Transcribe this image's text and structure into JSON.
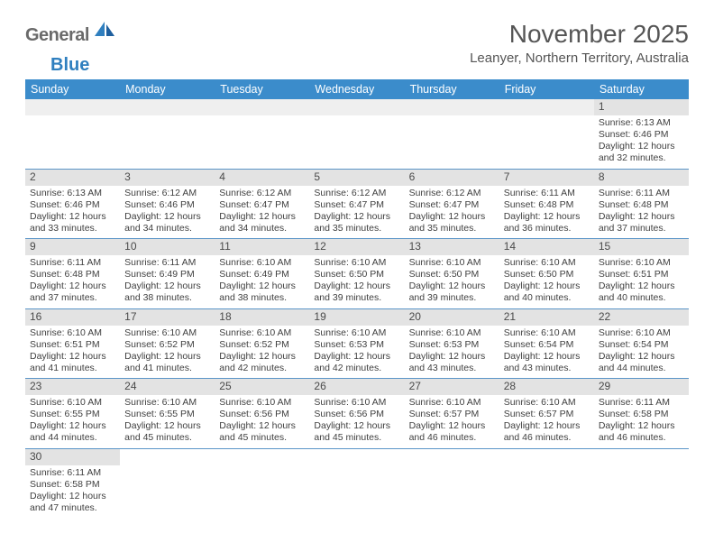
{
  "brand": {
    "part1": "General",
    "part2": "Blue"
  },
  "title": "November 2025",
  "location": "Leanyer, Northern Territory, Australia",
  "colors": {
    "header_bg": "#3b8ccb",
    "header_text": "#ffffff",
    "daynum_bg": "#e3e3e3",
    "row_border": "#5b95c8",
    "logo_gray": "#6a6a6a",
    "logo_blue": "#2f7fbf"
  },
  "weekdays": [
    "Sunday",
    "Monday",
    "Tuesday",
    "Wednesday",
    "Thursday",
    "Friday",
    "Saturday"
  ],
  "weeks": [
    [
      {
        "n": "",
        "sr": "",
        "ss": "",
        "dl": ""
      },
      {
        "n": "",
        "sr": "",
        "ss": "",
        "dl": ""
      },
      {
        "n": "",
        "sr": "",
        "ss": "",
        "dl": ""
      },
      {
        "n": "",
        "sr": "",
        "ss": "",
        "dl": ""
      },
      {
        "n": "",
        "sr": "",
        "ss": "",
        "dl": ""
      },
      {
        "n": "",
        "sr": "",
        "ss": "",
        "dl": ""
      },
      {
        "n": "1",
        "sr": "Sunrise: 6:13 AM",
        "ss": "Sunset: 6:46 PM",
        "dl": "Daylight: 12 hours and 32 minutes."
      }
    ],
    [
      {
        "n": "2",
        "sr": "Sunrise: 6:13 AM",
        "ss": "Sunset: 6:46 PM",
        "dl": "Daylight: 12 hours and 33 minutes."
      },
      {
        "n": "3",
        "sr": "Sunrise: 6:12 AM",
        "ss": "Sunset: 6:46 PM",
        "dl": "Daylight: 12 hours and 34 minutes."
      },
      {
        "n": "4",
        "sr": "Sunrise: 6:12 AM",
        "ss": "Sunset: 6:47 PM",
        "dl": "Daylight: 12 hours and 34 minutes."
      },
      {
        "n": "5",
        "sr": "Sunrise: 6:12 AM",
        "ss": "Sunset: 6:47 PM",
        "dl": "Daylight: 12 hours and 35 minutes."
      },
      {
        "n": "6",
        "sr": "Sunrise: 6:12 AM",
        "ss": "Sunset: 6:47 PM",
        "dl": "Daylight: 12 hours and 35 minutes."
      },
      {
        "n": "7",
        "sr": "Sunrise: 6:11 AM",
        "ss": "Sunset: 6:48 PM",
        "dl": "Daylight: 12 hours and 36 minutes."
      },
      {
        "n": "8",
        "sr": "Sunrise: 6:11 AM",
        "ss": "Sunset: 6:48 PM",
        "dl": "Daylight: 12 hours and 37 minutes."
      }
    ],
    [
      {
        "n": "9",
        "sr": "Sunrise: 6:11 AM",
        "ss": "Sunset: 6:48 PM",
        "dl": "Daylight: 12 hours and 37 minutes."
      },
      {
        "n": "10",
        "sr": "Sunrise: 6:11 AM",
        "ss": "Sunset: 6:49 PM",
        "dl": "Daylight: 12 hours and 38 minutes."
      },
      {
        "n": "11",
        "sr": "Sunrise: 6:10 AM",
        "ss": "Sunset: 6:49 PM",
        "dl": "Daylight: 12 hours and 38 minutes."
      },
      {
        "n": "12",
        "sr": "Sunrise: 6:10 AM",
        "ss": "Sunset: 6:50 PM",
        "dl": "Daylight: 12 hours and 39 minutes."
      },
      {
        "n": "13",
        "sr": "Sunrise: 6:10 AM",
        "ss": "Sunset: 6:50 PM",
        "dl": "Daylight: 12 hours and 39 minutes."
      },
      {
        "n": "14",
        "sr": "Sunrise: 6:10 AM",
        "ss": "Sunset: 6:50 PM",
        "dl": "Daylight: 12 hours and 40 minutes."
      },
      {
        "n": "15",
        "sr": "Sunrise: 6:10 AM",
        "ss": "Sunset: 6:51 PM",
        "dl": "Daylight: 12 hours and 40 minutes."
      }
    ],
    [
      {
        "n": "16",
        "sr": "Sunrise: 6:10 AM",
        "ss": "Sunset: 6:51 PM",
        "dl": "Daylight: 12 hours and 41 minutes."
      },
      {
        "n": "17",
        "sr": "Sunrise: 6:10 AM",
        "ss": "Sunset: 6:52 PM",
        "dl": "Daylight: 12 hours and 41 minutes."
      },
      {
        "n": "18",
        "sr": "Sunrise: 6:10 AM",
        "ss": "Sunset: 6:52 PM",
        "dl": "Daylight: 12 hours and 42 minutes."
      },
      {
        "n": "19",
        "sr": "Sunrise: 6:10 AM",
        "ss": "Sunset: 6:53 PM",
        "dl": "Daylight: 12 hours and 42 minutes."
      },
      {
        "n": "20",
        "sr": "Sunrise: 6:10 AM",
        "ss": "Sunset: 6:53 PM",
        "dl": "Daylight: 12 hours and 43 minutes."
      },
      {
        "n": "21",
        "sr": "Sunrise: 6:10 AM",
        "ss": "Sunset: 6:54 PM",
        "dl": "Daylight: 12 hours and 43 minutes."
      },
      {
        "n": "22",
        "sr": "Sunrise: 6:10 AM",
        "ss": "Sunset: 6:54 PM",
        "dl": "Daylight: 12 hours and 44 minutes."
      }
    ],
    [
      {
        "n": "23",
        "sr": "Sunrise: 6:10 AM",
        "ss": "Sunset: 6:55 PM",
        "dl": "Daylight: 12 hours and 44 minutes."
      },
      {
        "n": "24",
        "sr": "Sunrise: 6:10 AM",
        "ss": "Sunset: 6:55 PM",
        "dl": "Daylight: 12 hours and 45 minutes."
      },
      {
        "n": "25",
        "sr": "Sunrise: 6:10 AM",
        "ss": "Sunset: 6:56 PM",
        "dl": "Daylight: 12 hours and 45 minutes."
      },
      {
        "n": "26",
        "sr": "Sunrise: 6:10 AM",
        "ss": "Sunset: 6:56 PM",
        "dl": "Daylight: 12 hours and 45 minutes."
      },
      {
        "n": "27",
        "sr": "Sunrise: 6:10 AM",
        "ss": "Sunset: 6:57 PM",
        "dl": "Daylight: 12 hours and 46 minutes."
      },
      {
        "n": "28",
        "sr": "Sunrise: 6:10 AM",
        "ss": "Sunset: 6:57 PM",
        "dl": "Daylight: 12 hours and 46 minutes."
      },
      {
        "n": "29",
        "sr": "Sunrise: 6:11 AM",
        "ss": "Sunset: 6:58 PM",
        "dl": "Daylight: 12 hours and 46 minutes."
      }
    ],
    [
      {
        "n": "30",
        "sr": "Sunrise: 6:11 AM",
        "ss": "Sunset: 6:58 PM",
        "dl": "Daylight: 12 hours and 47 minutes."
      },
      {
        "n": "",
        "sr": "",
        "ss": "",
        "dl": ""
      },
      {
        "n": "",
        "sr": "",
        "ss": "",
        "dl": ""
      },
      {
        "n": "",
        "sr": "",
        "ss": "",
        "dl": ""
      },
      {
        "n": "",
        "sr": "",
        "ss": "",
        "dl": ""
      },
      {
        "n": "",
        "sr": "",
        "ss": "",
        "dl": ""
      },
      {
        "n": "",
        "sr": "",
        "ss": "",
        "dl": ""
      }
    ]
  ]
}
